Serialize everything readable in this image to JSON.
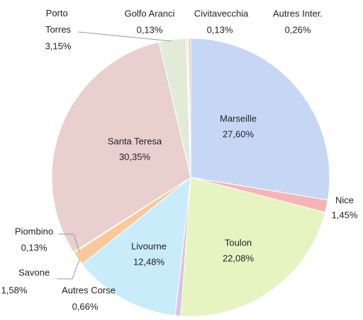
{
  "chart_data": {
    "type": "pie",
    "categories": [
      "Marseille",
      "Nice",
      "Toulon",
      "Autres Corse",
      "Livourne",
      "Savone",
      "Piombino",
      "Santa Teresa",
      "Porto Torres",
      "Golfo Aranci",
      "Civitavecchia",
      "Autres Inter."
    ],
    "values": [
      27.6,
      1.45,
      22.08,
      0.66,
      12.48,
      1.58,
      0.13,
      30.35,
      3.15,
      0.13,
      0.13,
      0.26
    ],
    "value_labels": [
      "27,60%",
      "1,45%",
      "22,08%",
      "0,66%",
      "12,48%",
      "1,58%",
      "0,13%",
      "30,35%",
      "3,15%",
      "0,13%",
      "0,13%",
      "0,26%"
    ],
    "colors": [
      "#c6d7f6",
      "#f5b5b8",
      "#e6f4c2",
      "#d8c6e6",
      "#c8ecf9",
      "#fbc89c",
      "#b9cbe9",
      "#eacfcf",
      "#e2ebd8",
      "#d6cde2",
      "#c0e3ee",
      "#f8c8a0"
    ]
  }
}
